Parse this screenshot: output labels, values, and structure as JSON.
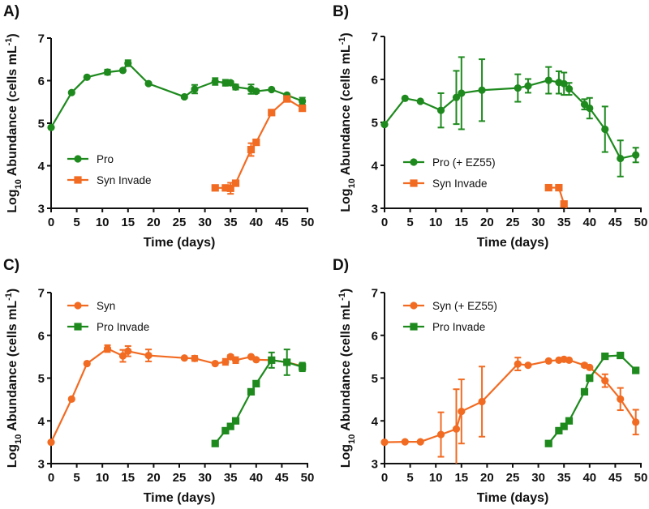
{
  "chart_data": [
    {
      "type": "line",
      "panel_label": "A)",
      "title": "",
      "xlabel": "Time (days)",
      "ylabel_parts": {
        "pre": "Log",
        "sub": "10",
        "mid": " Abundance (cells mL",
        "sup": "-1",
        "post": ")"
      },
      "xlim": [
        0,
        50
      ],
      "ylim": [
        3,
        7
      ],
      "xticks": [
        "0",
        "5",
        "10",
        "15",
        "20",
        "25",
        "30",
        "35",
        "40",
        "45",
        "50"
      ],
      "yticks": [
        "3",
        "4",
        "5",
        "6",
        "7"
      ],
      "grid": false,
      "legend_position": "bottom-left",
      "series": [
        {
          "name": "Pro",
          "color": "#1e8a1e",
          "marker": "circle",
          "x": [
            0,
            4,
            7,
            11,
            14,
            15,
            19,
            26,
            28,
            32,
            34,
            35,
            36,
            39,
            40,
            43,
            46,
            49
          ],
          "y": [
            4.9,
            5.72,
            6.08,
            6.2,
            6.24,
            6.41,
            5.93,
            5.62,
            5.8,
            5.98,
            5.95,
            5.95,
            5.85,
            5.8,
            5.75,
            5.79,
            5.66,
            5.52
          ],
          "err": [
            0.02,
            0.03,
            0.02,
            0.06,
            0.03,
            0.07,
            0.02,
            0.03,
            0.1,
            0.08,
            0.07,
            0.04,
            0.06,
            0.11,
            0.04,
            0.03,
            0.03,
            0.08
          ]
        },
        {
          "name": "Syn Invade",
          "color": "#f26b22",
          "marker": "square",
          "x": [
            32,
            34,
            35,
            36,
            39,
            40,
            43,
            46,
            49
          ],
          "y": [
            3.48,
            3.48,
            3.47,
            3.59,
            4.38,
            4.55,
            5.25,
            5.57,
            5.35
          ],
          "err": [
            0.02,
            0.02,
            0.13,
            0.05,
            0.15,
            0.05,
            0.04,
            0.04,
            0.05
          ]
        }
      ]
    },
    {
      "type": "line",
      "panel_label": "B)",
      "title": "",
      "xlabel": "Time (days)",
      "ylabel_parts": {
        "pre": "Log",
        "sub": "10",
        "mid": " Abundance (cells mL",
        "sup": "-1",
        "post": ")"
      },
      "xlim": [
        0,
        50
      ],
      "ylim": [
        3,
        7
      ],
      "xticks": [
        "0",
        "5",
        "10",
        "15",
        "20",
        "25",
        "30",
        "35",
        "40",
        "45",
        "50"
      ],
      "yticks": [
        "3",
        "4",
        "5",
        "6",
        "7"
      ],
      "grid": false,
      "legend_position": "bottom-left",
      "series": [
        {
          "name": "Pro (+ EZ55)",
          "color": "#1e8a1e",
          "marker": "circle",
          "x": [
            0,
            4,
            7,
            11,
            14,
            15,
            19,
            26,
            28,
            32,
            34,
            35,
            36,
            39,
            40,
            43,
            46,
            49
          ],
          "y": [
            4.95,
            5.56,
            5.49,
            5.28,
            5.58,
            5.68,
            5.75,
            5.8,
            5.85,
            5.98,
            5.93,
            5.9,
            5.78,
            5.42,
            5.33,
            4.84,
            4.16,
            4.24
          ],
          "err": [
            0.02,
            0.02,
            0.02,
            0.4,
            0.62,
            0.84,
            0.72,
            0.32,
            0.16,
            0.31,
            0.26,
            0.26,
            0.14,
            0.12,
            0.24,
            0.53,
            0.42,
            0.17
          ]
        },
        {
          "name": "Syn Invade",
          "color": "#f26b22",
          "marker": "square",
          "x": [
            32,
            34,
            35,
            35.5
          ],
          "y": [
            3.48,
            3.48,
            3.1,
            3.0
          ],
          "err": [
            0.02,
            0.02,
            0.02,
            0
          ]
        }
      ]
    },
    {
      "type": "line",
      "panel_label": "C)",
      "title": "",
      "xlabel": "Time (days)",
      "ylabel_parts": {
        "pre": "Log",
        "sub": "10",
        "mid": " Abundance (cells mL",
        "sup": "-1",
        "post": ")"
      },
      "xlim": [
        0,
        50
      ],
      "ylim": [
        3,
        7
      ],
      "xticks": [
        "0",
        "5",
        "10",
        "15",
        "20",
        "25",
        "30",
        "35",
        "40",
        "45",
        "50"
      ],
      "yticks": [
        "3",
        "4",
        "5",
        "6",
        "7"
      ],
      "grid": false,
      "legend_position": "top-left",
      "series": [
        {
          "name": "Syn",
          "color": "#f26b22",
          "marker": "circle",
          "x": [
            0,
            4,
            7,
            11,
            14,
            15,
            19,
            26,
            28,
            32,
            34,
            35,
            36,
            39,
            40,
            43,
            46,
            49
          ],
          "y": [
            3.5,
            4.51,
            5.34,
            5.69,
            5.52,
            5.63,
            5.53,
            5.47,
            5.46,
            5.34,
            5.38,
            5.5,
            5.42,
            5.5,
            5.43,
            5.42,
            5.37,
            5.28
          ],
          "err": [
            0.02,
            0.02,
            0.02,
            0.08,
            0.14,
            0.12,
            0.14,
            0.03,
            0.06,
            0.03,
            0.07,
            0.04,
            0.07,
            0.03,
            0.03,
            0.04,
            0.06,
            0.05
          ]
        },
        {
          "name": "Pro Invade",
          "color": "#1e8a1e",
          "marker": "square",
          "x": [
            32,
            34,
            35,
            36,
            39,
            40,
            43,
            46,
            49
          ],
          "y": [
            3.47,
            3.77,
            3.87,
            4.0,
            4.68,
            4.87,
            5.42,
            5.37,
            5.26
          ],
          "err": [
            0.02,
            0.03,
            0.03,
            0.03,
            0.03,
            0.05,
            0.18,
            0.3,
            0.1
          ]
        }
      ]
    },
    {
      "type": "line",
      "panel_label": "D)",
      "title": "",
      "xlabel": "Time (days)",
      "ylabel_parts": {
        "pre": "Log",
        "sub": "10",
        "mid": " Abundance (cells mL",
        "sup": "-1",
        "post": ")"
      },
      "xlim": [
        0,
        50
      ],
      "ylim": [
        3,
        7
      ],
      "xticks": [
        "0",
        "5",
        "10",
        "15",
        "20",
        "25",
        "30",
        "35",
        "40",
        "45",
        "50"
      ],
      "yticks": [
        "3",
        "4",
        "5",
        "6",
        "7"
      ],
      "grid": false,
      "legend_position": "top-left",
      "series": [
        {
          "name": "Syn (+ EZ55)",
          "color": "#f26b22",
          "marker": "circle",
          "x": [
            0,
            4,
            7,
            11,
            14,
            15,
            19,
            26,
            28,
            32,
            34,
            35,
            36,
            39,
            40,
            43,
            46,
            49
          ],
          "y": [
            3.5,
            3.51,
            3.51,
            3.68,
            3.81,
            4.22,
            4.45,
            5.33,
            5.3,
            5.4,
            5.42,
            5.44,
            5.42,
            5.3,
            5.25,
            4.94,
            4.51,
            3.97
          ],
          "err": [
            0.02,
            0.02,
            0.02,
            0.52,
            0.93,
            0.75,
            0.82,
            0.15,
            0.03,
            0.03,
            0.03,
            0.03,
            0.03,
            0.04,
            0.03,
            0.15,
            0.26,
            0.29
          ]
        },
        {
          "name": "Pro Invade",
          "color": "#1e8a1e",
          "marker": "square",
          "x": [
            32,
            34,
            35,
            36,
            39,
            40,
            43,
            46,
            49
          ],
          "y": [
            3.47,
            3.77,
            3.87,
            4.0,
            4.68,
            5.0,
            5.51,
            5.53,
            5.18
          ],
          "err": [
            0.02,
            0.02,
            0.02,
            0.03,
            0.03,
            0.07,
            0.03,
            0.03,
            0.03
          ]
        }
      ]
    }
  ]
}
